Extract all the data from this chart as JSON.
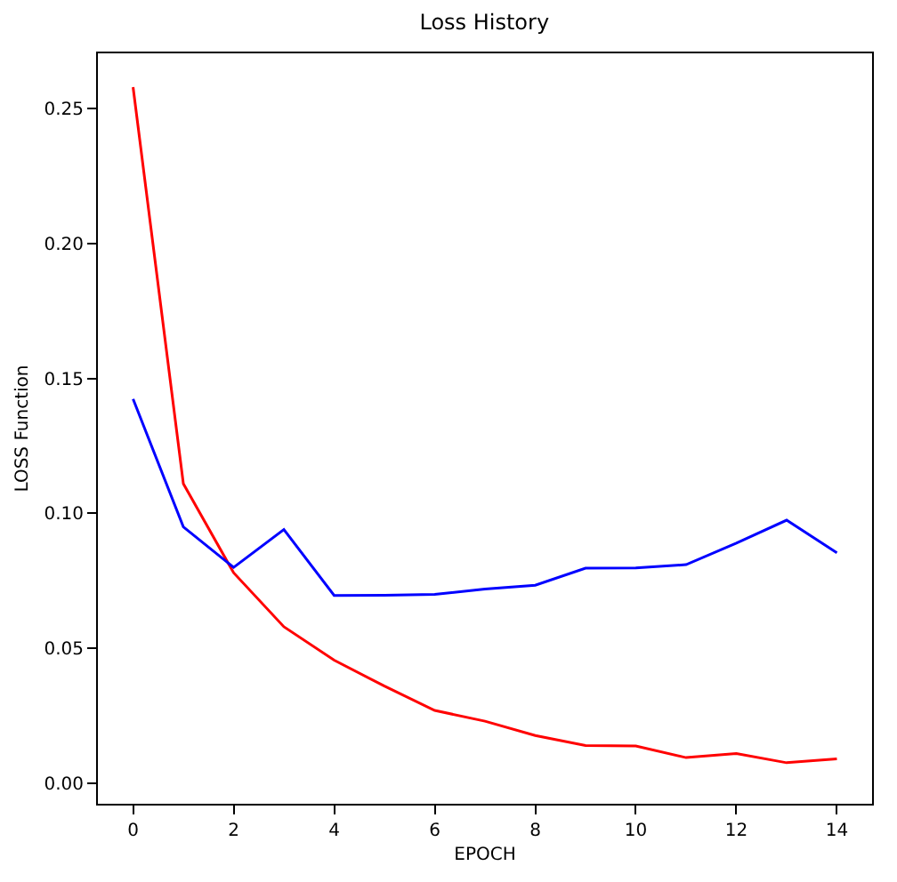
{
  "chart_data": {
    "type": "line",
    "title": "Loss History",
    "xlabel": "EPOCH",
    "ylabel": "LOSS Function",
    "x": [
      0,
      1,
      2,
      3,
      4,
      5,
      6,
      7,
      8,
      9,
      10,
      11,
      12,
      13,
      14
    ],
    "series": [
      {
        "color": "#ff0000",
        "values": [
          0.258,
          0.111,
          0.078,
          0.058,
          0.0456,
          0.036,
          0.027,
          0.023,
          0.0177,
          0.014,
          0.0138,
          0.0095,
          0.011,
          0.0076,
          0.009
        ]
      },
      {
        "color": "#0000ff",
        "values": [
          0.1424,
          0.095,
          0.08,
          0.094,
          0.0696,
          0.0697,
          0.07,
          0.072,
          0.0734,
          0.0797,
          0.0798,
          0.081,
          0.089,
          0.0975,
          0.0854
        ]
      }
    ],
    "xlim": [
      -0.7,
      14.7
    ],
    "xticks": [
      0,
      2,
      4,
      6,
      8,
      10,
      12,
      14
    ],
    "ylim": [
      -0.0076,
      0.2705
    ],
    "yticks": [
      {
        "value": 0,
        "label": "0.00"
      },
      {
        "value": 0.05,
        "label": "0.05"
      },
      {
        "value": 0.1,
        "label": "0.10"
      },
      {
        "value": 0.15,
        "label": "0.15"
      },
      {
        "value": 0.2,
        "label": "0.20"
      },
      {
        "value": 0.25,
        "label": "0.25"
      }
    ],
    "marker": "none",
    "line_style": "solid"
  }
}
